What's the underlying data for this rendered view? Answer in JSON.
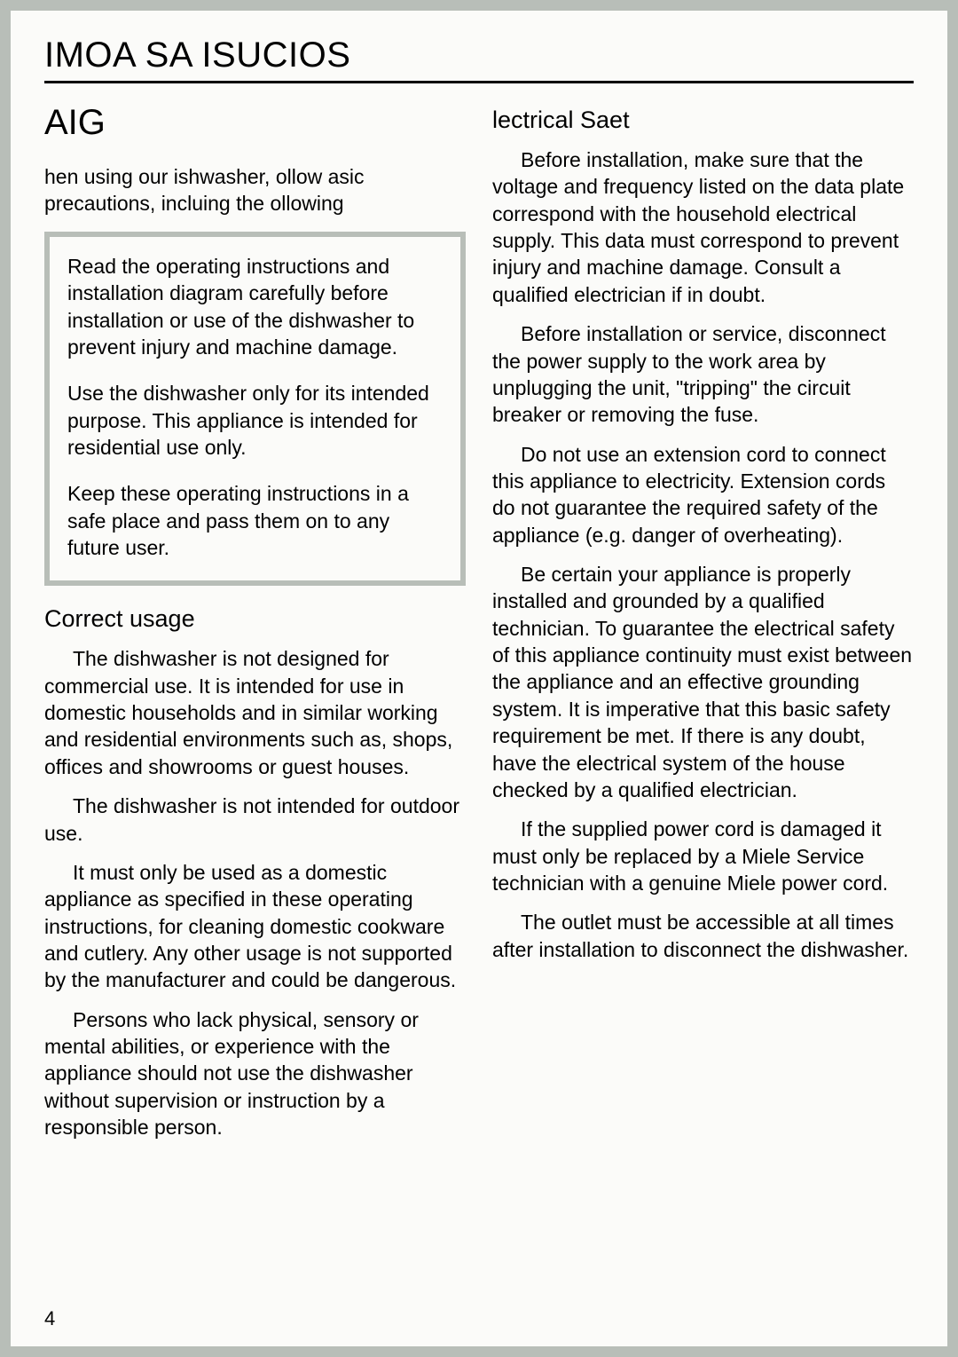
{
  "style": {
    "page_bg": "#fbfbf9",
    "outer_bg": "#b8beb8",
    "text_color": "#000000",
    "callout_border": "#b8beb8",
    "header_fontsize": 40,
    "warning_fontsize": 40,
    "subhead_fontsize": 27,
    "body_fontsize": 23,
    "intro_fontsize": 23,
    "header_rule_width": 3,
    "callout_border_width": 6,
    "body_line_height": 1.32,
    "text_indent": 32
  },
  "header": "IMOA SA ISUCIOS",
  "left": {
    "warning_title": "AIG",
    "intro": "hen using our ishwasher, ollow asic precautions, incluing the ollowing",
    "callout": [
      "Read the operating instructions and installation diagram carefully before installation or use of the dishwasher to prevent injury and machine damage.",
      "Use the dishwasher only for its intended purpose. This appliance is intended for residential use only.",
      "Keep these operating instructions in a safe place and pass them on to any future user."
    ],
    "subhead": "Correct usage",
    "paras": [
      "The dishwasher is not designed for commercial use. It is intended for use in domestic households and in similar working and residential environments such as, shops, offices and showrooms or guest houses.",
      "The dishwasher is not intended for outdoor use.",
      "It must only be used as a domestic appliance as specified in these operating instructions, for cleaning domestic cookware and cutlery. Any other usage is not supported by the manufacturer and could be dangerous.",
      "Persons who lack physical, sensory or mental abilities, or experience with the appliance should not use the dishwasher without supervision or instruction by a responsible person."
    ]
  },
  "right": {
    "subhead": "lectrical Saet",
    "paras": [
      "Before installation, make sure that the voltage and frequency listed on the data plate correspond with the household electrical supply. This data must correspond to prevent injury and machine damage. Consult a qualified electrician if in doubt.",
      "Before installation or service, disconnect the power supply to the work area by unplugging the unit, \"tripping\" the circuit breaker or removing the fuse.",
      "Do not use an extension cord to connect this appliance to electricity. Extension cords do not guarantee the required safety of the appliance (e.g. danger of overheating).",
      "Be certain your appliance is properly installed and grounded by a qualified technician. To guarantee the electrical safety of this appliance continuity must exist between the appliance and an effective grounding system. It is imperative that this basic safety requirement be met. If there is any doubt, have the electrical system of the house checked by a qualified electrician.",
      "If the supplied power cord is damaged it must only be replaced by a Miele Service technician with a genuine Miele power cord.",
      "The outlet must be accessible at all times after installation to disconnect the dishwasher."
    ]
  },
  "page_number": "4"
}
